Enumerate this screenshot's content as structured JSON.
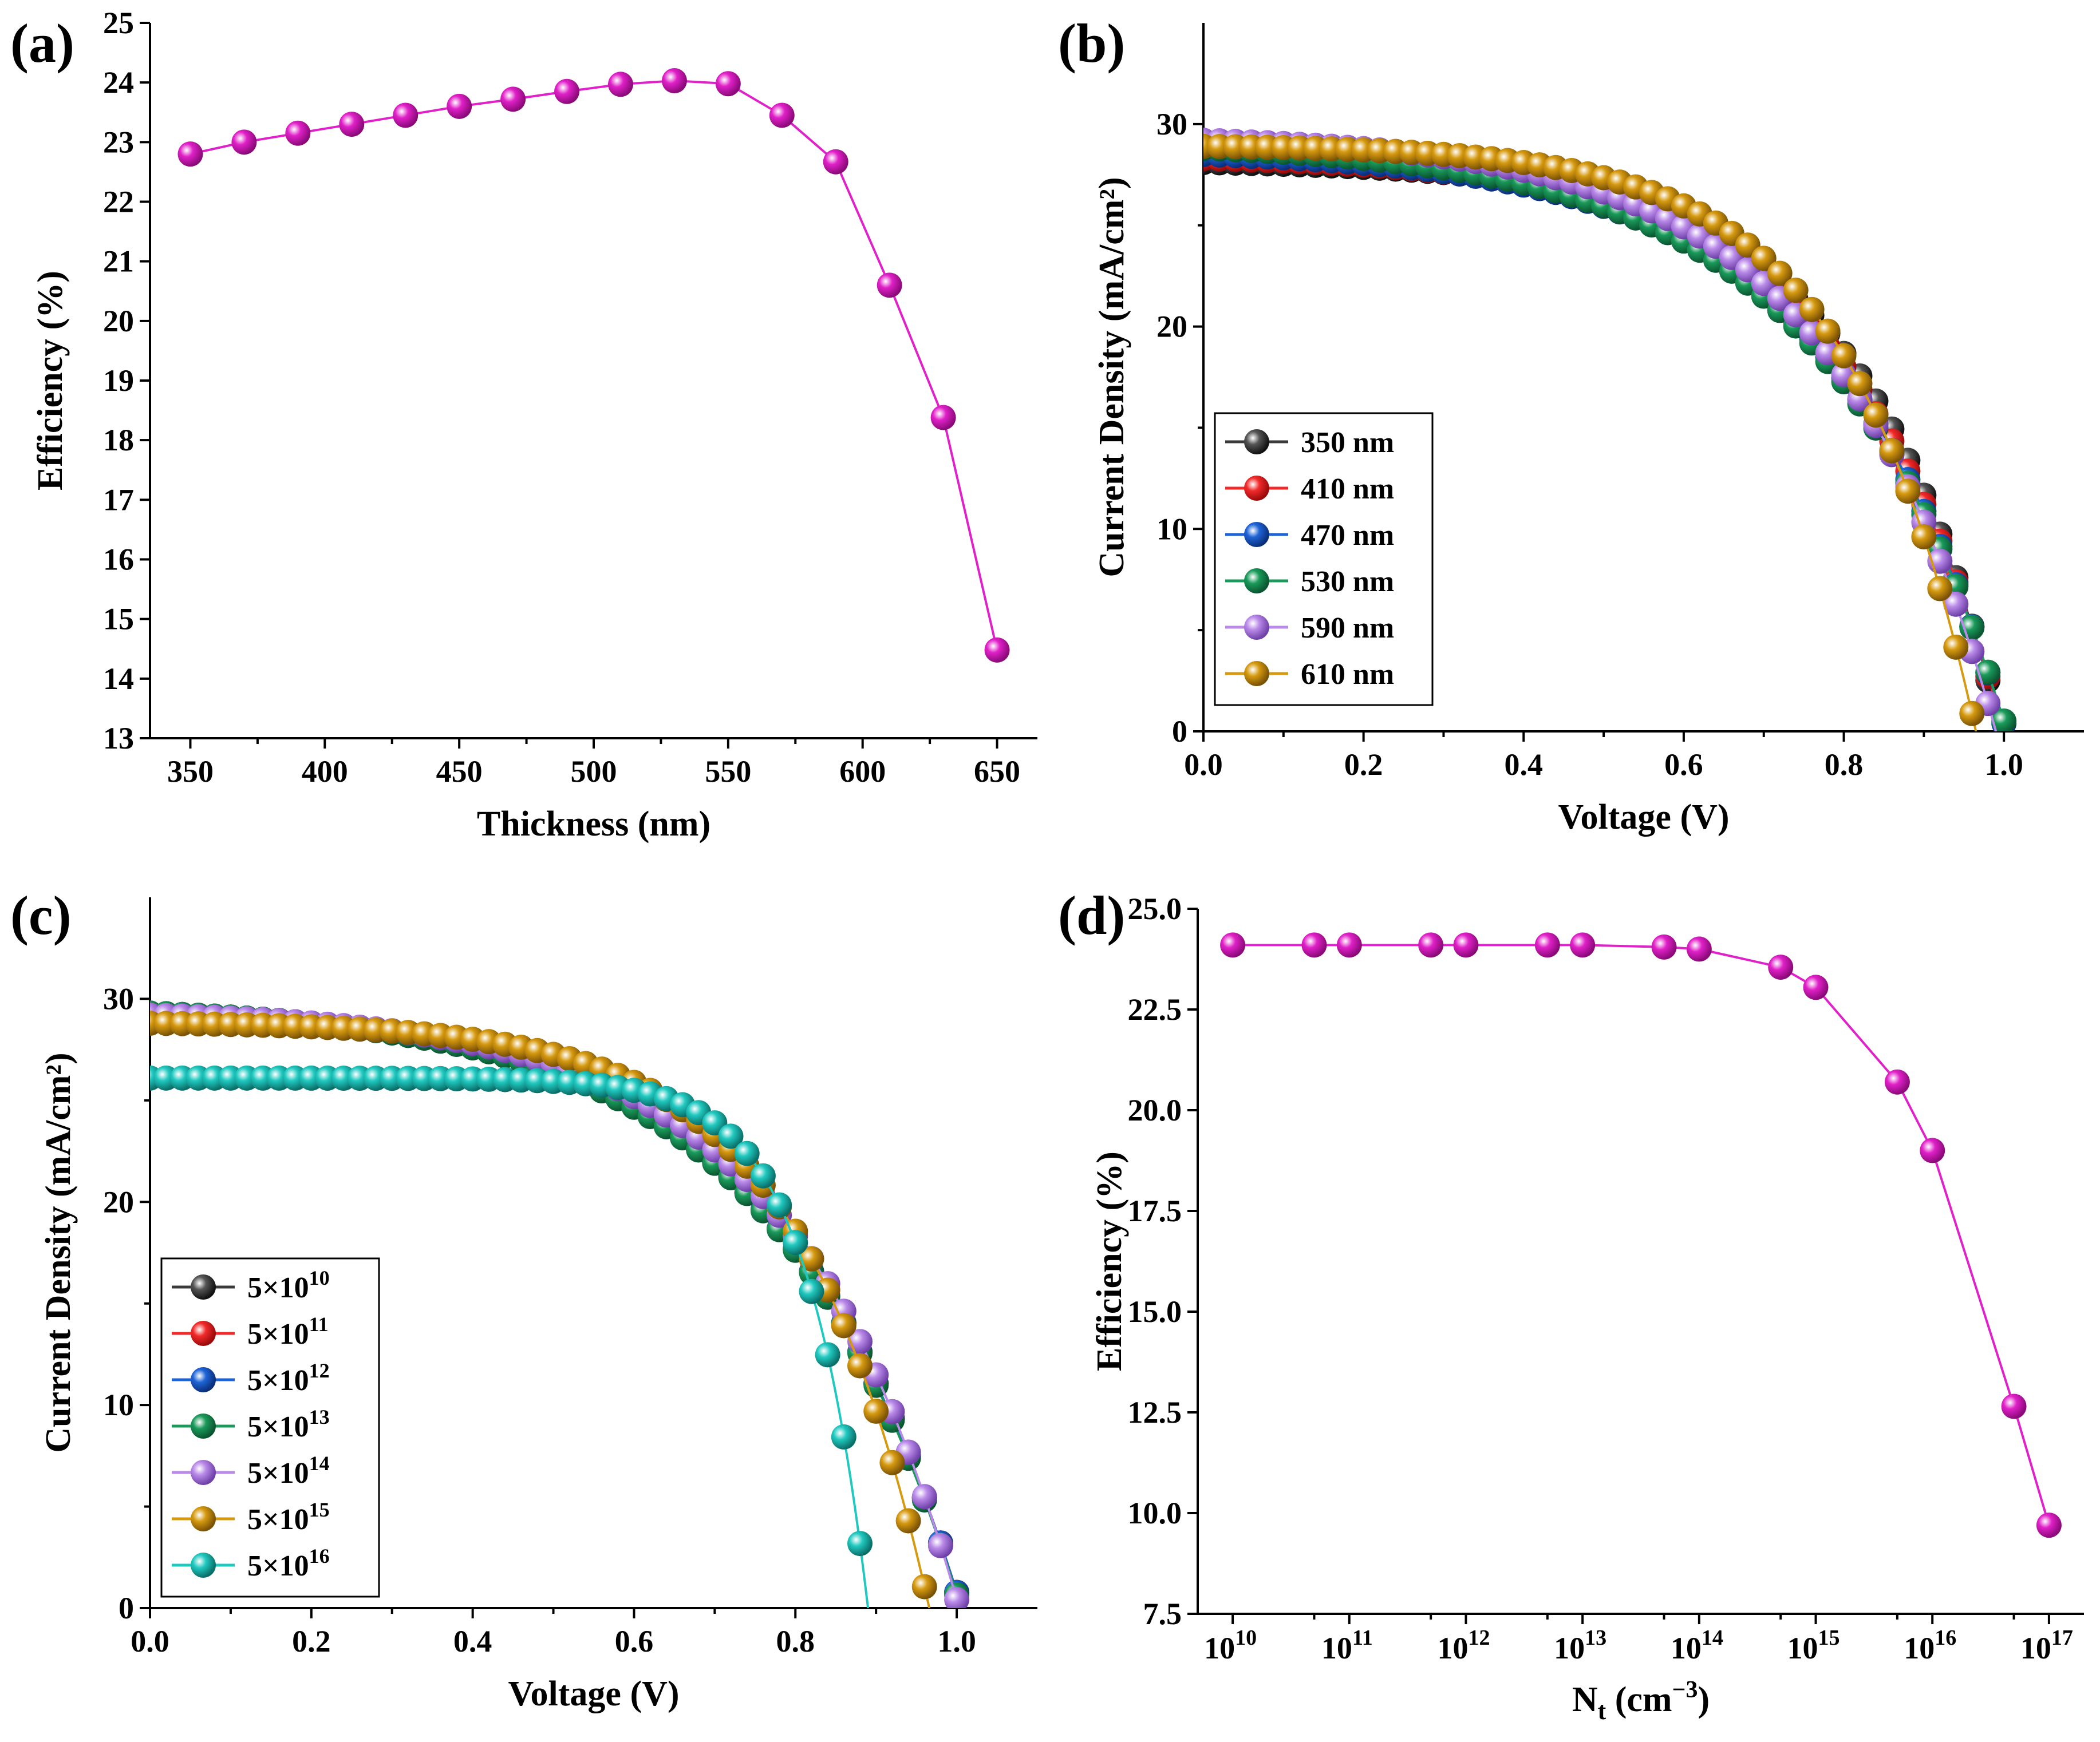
{
  "colors": {
    "magenta": "#e020c8",
    "black": "#3a3a3a",
    "red": "#f22a2a",
    "blue": "#1e64d6",
    "green": "#1a9a5a",
    "violet": "#b98ae8",
    "orange": "#d69a10",
    "cyan": "#20c9c0"
  },
  "chart_data": [
    {
      "panel": "(a)",
      "type": "line",
      "xlabel": "Thickness (nm)",
      "ylabel": "Efficiency (%)",
      "xlim": [
        335,
        665
      ],
      "ylim": [
        13,
        25
      ],
      "xticks": [
        350,
        400,
        450,
        500,
        550,
        600,
        650
      ],
      "yticks": [
        13,
        14,
        15,
        16,
        17,
        18,
        19,
        20,
        21,
        22,
        23,
        24,
        25
      ],
      "series": [
        {
          "name": "Efficiency",
          "color": "magenta",
          "x": [
            350,
            370,
            390,
            410,
            430,
            450,
            470,
            490,
            510,
            530,
            550,
            570,
            590,
            610,
            630,
            650
          ],
          "y": [
            22.8,
            23.0,
            23.15,
            23.3,
            23.45,
            23.6,
            23.72,
            23.85,
            23.97,
            24.03,
            23.98,
            23.45,
            22.67,
            20.6,
            18.38,
            14.48
          ]
        }
      ]
    },
    {
      "panel": "(b)",
      "type": "line",
      "xlabel": "Voltage (V)",
      "ylabel": "Current Density (mA/cm²)",
      "xlim": [
        0,
        1.1
      ],
      "ylim": [
        0,
        35
      ],
      "xticks": [
        "0.0",
        "0.2",
        "0.4",
        "0.6",
        "0.8",
        "1.0"
      ],
      "yticks": [
        0,
        10,
        20,
        30
      ],
      "legend_position": "lower-left",
      "series": [
        {
          "name": "350 nm",
          "color": "black",
          "jsc": 28.1,
          "voc": 0.997,
          "n": 5.5
        },
        {
          "name": "410 nm",
          "color": "red",
          "jsc": 28.3,
          "voc": 1.0,
          "n": 5.0
        },
        {
          "name": "470 nm",
          "color": "blue",
          "jsc": 28.5,
          "voc": 1.003,
          "n": 4.6
        },
        {
          "name": "530 nm",
          "color": "green",
          "jsc": 28.8,
          "voc": 1.004,
          "n": 4.4
        },
        {
          "name": "590 nm",
          "color": "violet",
          "jsc": 29.2,
          "voc": 0.99,
          "n": 4.8
        },
        {
          "name": "610 nm",
          "color": "orange",
          "jsc": 28.9,
          "voc": 0.965,
          "n": 6.2
        }
      ]
    },
    {
      "panel": "(c)",
      "type": "line",
      "xlabel": "Voltage (V)",
      "ylabel": "Current Density (mA/cm²)",
      "xlim": [
        0,
        1.1
      ],
      "ylim": [
        0,
        35
      ],
      "xticks": [
        "0.0",
        "0.2",
        "0.4",
        "0.6",
        "0.8",
        "1.0"
      ],
      "yticks": [
        0,
        10,
        20,
        30
      ],
      "legend_position": "lower-left",
      "series": [
        {
          "name": "5×10",
          "exp": "10",
          "color": "black",
          "jsc": 29.3,
          "voc": 1.006,
          "n": 4.4
        },
        {
          "name": "5×10",
          "exp": "11",
          "color": "red",
          "jsc": 29.3,
          "voc": 1.006,
          "n": 4.4
        },
        {
          "name": "5×10",
          "exp": "12",
          "color": "blue",
          "jsc": 29.3,
          "voc": 1.006,
          "n": 4.4
        },
        {
          "name": "5×10",
          "exp": "13",
          "color": "green",
          "jsc": 29.3,
          "voc": 1.005,
          "n": 4.4
        },
        {
          "name": "5×10",
          "exp": "14",
          "color": "violet",
          "jsc": 29.2,
          "voc": 1.003,
          "n": 4.8
        },
        {
          "name": "5×10",
          "exp": "15",
          "color": "orange",
          "jsc": 28.8,
          "voc": 0.966,
          "n": 6.2
        },
        {
          "name": "5×10",
          "exp": "16",
          "color": "cyan",
          "jsc": 26.1,
          "voc": 0.89,
          "n": 13.0
        }
      ]
    },
    {
      "panel": "(d)",
      "type": "line",
      "xscale": "log",
      "xlabel": "N",
      "xlabel_sub": "t",
      "xlabel_unit": " (cm",
      "xlabel_exp": "−3",
      "xlabel_end": ")",
      "ylabel": "Efficiency (%)",
      "xlim_log10": [
        9.7,
        17.3
      ],
      "ylim": [
        7.5,
        25.0
      ],
      "xtick_exponents": [
        "10",
        "11",
        "12",
        "13",
        "14",
        "15",
        "16",
        "17"
      ],
      "xtick_base": "10",
      "yticks": [
        "7.5",
        "10.0",
        "12.5",
        "15.0",
        "17.5",
        "20.0",
        "22.5",
        "25.0"
      ],
      "series": [
        {
          "name": "Efficiency",
          "color": "magenta",
          "x": [
            10000000000.0,
            50000000000.0,
            100000000000.0,
            500000000000.0,
            1000000000000.0,
            5000000000000.0,
            10000000000000.0,
            50000000000000.0,
            100000000000000.0,
            500000000000000.0,
            1000000000000000.0,
            5000000000000000.0,
            1e+16,
            5e+16,
            1e+17
          ],
          "y": [
            24.1,
            24.1,
            24.1,
            24.1,
            24.1,
            24.1,
            24.1,
            24.05,
            24.0,
            23.55,
            23.05,
            20.7,
            19.0,
            12.65,
            9.7
          ]
        }
      ]
    }
  ]
}
